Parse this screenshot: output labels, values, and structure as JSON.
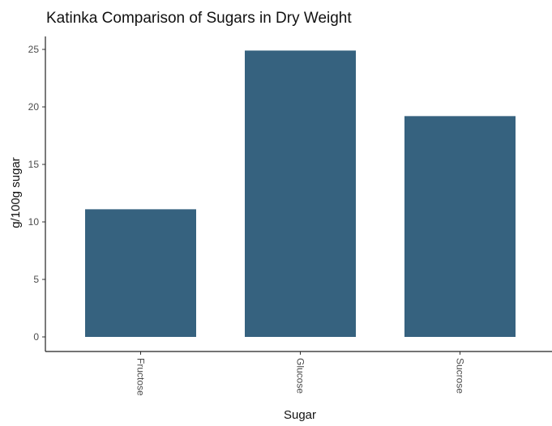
{
  "chart_data": {
    "type": "bar",
    "title": "Katinka Comparison of Sugars in Dry Weight",
    "xlabel": "Sugar",
    "ylabel": "g/100g sugar",
    "categories": [
      "Fructose",
      "Glucose",
      "Sucrose"
    ],
    "values": [
      11.1,
      24.9,
      19.2
    ],
    "ylim": [
      0,
      26.2
    ],
    "yticks": [
      0,
      5,
      10,
      15,
      20,
      25
    ],
    "bar_color": "#36627f",
    "grid": false,
    "legend": "none"
  }
}
